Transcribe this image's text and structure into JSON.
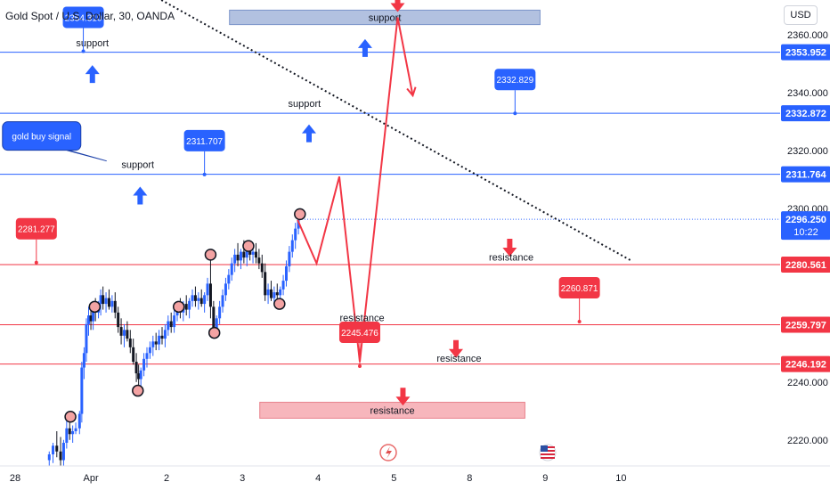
{
  "header": {
    "title": "Gold Spot / U.S. Dollar, 30, OANDA",
    "currency_button": "USD"
  },
  "colors": {
    "support_line": "#2962ff",
    "resistance_line": "#f23645",
    "up_candle": "#2962ff",
    "down_candle": "#131722",
    "support_zone": "#b2c1e0",
    "resistance_zone": "#f7b6bc",
    "blue_arrow": "#2962ff",
    "red_arrow": "#f23645",
    "price_tag_blue": "#2962ff",
    "price_tag_red": "#f23645",
    "projection": "#f23645",
    "marker_fill": "#f4a3a3"
  },
  "chart_data": {
    "type": "candlestick",
    "title": "Gold Spot / U.S. Dollar, 30, OANDA",
    "ylim": [
      2211,
      2372
    ],
    "xlim": [
      -0.2,
      10.1
    ],
    "y_ticks": [
      "2220.000",
      "2240.000",
      "2260.000",
      "2280.000",
      "2300.000",
      "2320.000",
      "2340.000",
      "2360.000"
    ],
    "x_ticks": [
      {
        "label": "28",
        "x": 0.0
      },
      {
        "label": "Apr",
        "x": 1.0
      },
      {
        "label": "2",
        "x": 2.0
      },
      {
        "label": "3",
        "x": 3.0
      },
      {
        "label": "4",
        "x": 4.0
      },
      {
        "label": "5",
        "x": 5.0
      },
      {
        "label": "8",
        "x": 6.0
      },
      {
        "label": "9",
        "x": 7.0
      },
      {
        "label": "10",
        "x": 8.0
      }
    ],
    "horizontal_lines": [
      {
        "value": 2353.952,
        "label": "2353.952",
        "color": "blue"
      },
      {
        "value": 2332.872,
        "label": "2332.872",
        "color": "blue"
      },
      {
        "value": 2311.764,
        "label": "2311.764",
        "color": "blue"
      },
      {
        "value": 2280.561,
        "label": "2280.561",
        "color": "red"
      },
      {
        "value": 2259.797,
        "label": "2259.797",
        "color": "red"
      },
      {
        "value": 2246.192,
        "label": "2246.192",
        "color": "red"
      }
    ],
    "current_price": {
      "value": 2296.25,
      "label": "2296.250",
      "countdown": "10:22"
    },
    "price_callouts": [
      {
        "label": "2354.310",
        "x": 0.9,
        "y": 2354.31,
        "color": "blue"
      },
      {
        "label": "2311.707",
        "x": 2.5,
        "y": 2311.707,
        "color": "blue"
      },
      {
        "label": "2332.829",
        "x": 6.6,
        "y": 2332.829,
        "color": "blue"
      },
      {
        "label": "2281.277",
        "x": 0.28,
        "y": 2281.277,
        "color": "red"
      },
      {
        "label": "2245.476",
        "x": 4.55,
        "y": 2245.476,
        "color": "red"
      },
      {
        "label": "2260.871",
        "x": 7.45,
        "y": 2260.871,
        "color": "red"
      }
    ],
    "annotations": [
      {
        "text": "support",
        "kind": "label",
        "x": 1.02,
        "y": 2356
      },
      {
        "text": "support",
        "kind": "label",
        "x": 1.62,
        "y": 2314
      },
      {
        "text": "support",
        "kind": "label",
        "x": 3.82,
        "y": 2335
      },
      {
        "text": "resistance",
        "kind": "label",
        "x": 6.55,
        "y": 2282
      },
      {
        "text": "resistance",
        "kind": "label",
        "x": 4.58,
        "y": 2261
      },
      {
        "text": "resistance",
        "kind": "label",
        "x": 5.86,
        "y": 2247
      },
      {
        "text": "gold buy signal",
        "kind": "bubble",
        "x": 0.35,
        "y": 2325
      }
    ],
    "zones": [
      {
        "label": "support",
        "kind": "support",
        "x_start": 2.83,
        "x_end": 6.93,
        "y_low": 2363.5,
        "y_high": 2368.5
      },
      {
        "label": "resistance",
        "kind": "resistance",
        "x_start": 3.23,
        "x_end": 6.73,
        "y_low": 2227.5,
        "y_high": 2233
      }
    ],
    "arrows": [
      {
        "dir": "up",
        "color": "blue",
        "x": 1.02,
        "y": 2349.5
      },
      {
        "dir": "up",
        "color": "blue",
        "x": 1.65,
        "y": 2307.5
      },
      {
        "dir": "up",
        "color": "blue",
        "x": 3.88,
        "y": 2329
      },
      {
        "dir": "up",
        "color": "blue",
        "x": 4.62,
        "y": 2358.5
      },
      {
        "dir": "down",
        "color": "red",
        "x": 5.05,
        "y": 2374
      },
      {
        "dir": "down",
        "color": "red",
        "x": 6.53,
        "y": 2289.5
      },
      {
        "dir": "down",
        "color": "red",
        "x": 5.82,
        "y": 2254.5
      },
      {
        "dir": "down",
        "color": "red",
        "x": 5.12,
        "y": 2238
      }
    ],
    "trendline": {
      "points": [
        [
          1.93,
          2372
        ],
        [
          8.13,
          2282
        ]
      ],
      "style": "dotted"
    },
    "projection": [
      [
        3.73,
        2296
      ],
      [
        3.98,
        2281
      ],
      [
        4.28,
        2311
      ],
      [
        4.55,
        2247
      ],
      [
        5.05,
        2366
      ],
      [
        5.25,
        2339
      ]
    ],
    "markers": [
      {
        "x": 0.73,
        "y": 2228
      },
      {
        "x": 1.05,
        "y": 2266
      },
      {
        "x": 1.62,
        "y": 2237
      },
      {
        "x": 2.16,
        "y": 2266
      },
      {
        "x": 2.58,
        "y": 2284
      },
      {
        "x": 2.63,
        "y": 2257
      },
      {
        "x": 3.08,
        "y": 2287
      },
      {
        "x": 3.49,
        "y": 2267
      },
      {
        "x": 3.76,
        "y": 2298
      }
    ],
    "candles": [
      {
        "t": 0.45,
        "o": 2213,
        "h": 2216,
        "l": 2211,
        "c": 2215
      },
      {
        "t": 0.5,
        "o": 2215,
        "h": 2219,
        "l": 2212,
        "c": 2218
      },
      {
        "t": 0.55,
        "o": 2218,
        "h": 2223,
        "l": 2214,
        "c": 2216
      },
      {
        "t": 0.6,
        "o": 2216,
        "h": 2221,
        "l": 2211,
        "c": 2213
      },
      {
        "t": 0.64,
        "o": 2213,
        "h": 2220,
        "l": 2211,
        "c": 2219
      },
      {
        "t": 0.68,
        "o": 2219,
        "h": 2227,
        "l": 2217,
        "c": 2224
      },
      {
        "t": 0.72,
        "o": 2224,
        "h": 2227,
        "l": 2220,
        "c": 2222
      },
      {
        "t": 0.76,
        "o": 2222,
        "h": 2225,
        "l": 2219,
        "c": 2223
      },
      {
        "t": 0.8,
        "o": 2223,
        "h": 2226,
        "l": 2222,
        "c": 2224
      },
      {
        "t": 0.85,
        "o": 2224,
        "h": 2230,
        "l": 2222,
        "c": 2229
      },
      {
        "t": 0.88,
        "o": 2229,
        "h": 2247,
        "l": 2226,
        "c": 2245
      },
      {
        "t": 0.91,
        "o": 2245,
        "h": 2252,
        "l": 2241,
        "c": 2250
      },
      {
        "t": 0.94,
        "o": 2250,
        "h": 2262,
        "l": 2247,
        "c": 2260
      },
      {
        "t": 0.97,
        "o": 2260,
        "h": 2266,
        "l": 2256,
        "c": 2263
      },
      {
        "t": 1.0,
        "o": 2263,
        "h": 2267,
        "l": 2258,
        "c": 2261
      },
      {
        "t": 1.03,
        "o": 2261,
        "h": 2268,
        "l": 2258,
        "c": 2265
      },
      {
        "t": 1.06,
        "o": 2265,
        "h": 2269,
        "l": 2261,
        "c": 2264
      },
      {
        "t": 1.1,
        "o": 2264,
        "h": 2268,
        "l": 2262,
        "c": 2267
      },
      {
        "t": 1.13,
        "o": 2267,
        "h": 2272,
        "l": 2263,
        "c": 2270
      },
      {
        "t": 1.16,
        "o": 2270,
        "h": 2273,
        "l": 2265,
        "c": 2267
      },
      {
        "t": 1.2,
        "o": 2267,
        "h": 2271,
        "l": 2264,
        "c": 2269
      },
      {
        "t": 1.24,
        "o": 2269,
        "h": 2272,
        "l": 2265,
        "c": 2266
      },
      {
        "t": 1.28,
        "o": 2266,
        "h": 2270,
        "l": 2264,
        "c": 2268
      },
      {
        "t": 1.32,
        "o": 2268,
        "h": 2271,
        "l": 2262,
        "c": 2264
      },
      {
        "t": 1.36,
        "o": 2264,
        "h": 2266,
        "l": 2257,
        "c": 2259
      },
      {
        "t": 1.4,
        "o": 2259,
        "h": 2262,
        "l": 2253,
        "c": 2256
      },
      {
        "t": 1.44,
        "o": 2256,
        "h": 2260,
        "l": 2252,
        "c": 2258
      },
      {
        "t": 1.48,
        "o": 2258,
        "h": 2261,
        "l": 2254,
        "c": 2255
      },
      {
        "t": 1.52,
        "o": 2255,
        "h": 2258,
        "l": 2250,
        "c": 2252
      },
      {
        "t": 1.56,
        "o": 2252,
        "h": 2255,
        "l": 2246,
        "c": 2247
      },
      {
        "t": 1.6,
        "o": 2247,
        "h": 2250,
        "l": 2240,
        "c": 2243
      },
      {
        "t": 1.63,
        "o": 2243,
        "h": 2246,
        "l": 2236,
        "c": 2241
      },
      {
        "t": 1.66,
        "o": 2241,
        "h": 2245,
        "l": 2237,
        "c": 2244
      },
      {
        "t": 1.7,
        "o": 2244,
        "h": 2250,
        "l": 2242,
        "c": 2248
      },
      {
        "t": 1.74,
        "o": 2248,
        "h": 2252,
        "l": 2245,
        "c": 2250
      },
      {
        "t": 1.78,
        "o": 2250,
        "h": 2254,
        "l": 2248,
        "c": 2252
      },
      {
        "t": 1.82,
        "o": 2252,
        "h": 2256,
        "l": 2249,
        "c": 2254
      },
      {
        "t": 1.86,
        "o": 2254,
        "h": 2257,
        "l": 2251,
        "c": 2253
      },
      {
        "t": 1.9,
        "o": 2253,
        "h": 2258,
        "l": 2251,
        "c": 2256
      },
      {
        "t": 1.94,
        "o": 2256,
        "h": 2259,
        "l": 2253,
        "c": 2255
      },
      {
        "t": 1.98,
        "o": 2255,
        "h": 2260,
        "l": 2252,
        "c": 2258
      },
      {
        "t": 2.02,
        "o": 2258,
        "h": 2263,
        "l": 2256,
        "c": 2261
      },
      {
        "t": 2.06,
        "o": 2261,
        "h": 2264,
        "l": 2257,
        "c": 2259
      },
      {
        "t": 2.1,
        "o": 2259,
        "h": 2265,
        "l": 2257,
        "c": 2263
      },
      {
        "t": 2.14,
        "o": 2263,
        "h": 2268,
        "l": 2261,
        "c": 2266
      },
      {
        "t": 2.18,
        "o": 2266,
        "h": 2269,
        "l": 2262,
        "c": 2264
      },
      {
        "t": 2.22,
        "o": 2264,
        "h": 2268,
        "l": 2261,
        "c": 2267
      },
      {
        "t": 2.26,
        "o": 2267,
        "h": 2270,
        "l": 2263,
        "c": 2265
      },
      {
        "t": 2.3,
        "o": 2265,
        "h": 2269,
        "l": 2262,
        "c": 2268
      },
      {
        "t": 2.34,
        "o": 2268,
        "h": 2272,
        "l": 2266,
        "c": 2270
      },
      {
        "t": 2.38,
        "o": 2270,
        "h": 2273,
        "l": 2266,
        "c": 2268
      },
      {
        "t": 2.42,
        "o": 2268,
        "h": 2271,
        "l": 2265,
        "c": 2269
      },
      {
        "t": 2.46,
        "o": 2269,
        "h": 2272,
        "l": 2266,
        "c": 2267
      },
      {
        "t": 2.5,
        "o": 2267,
        "h": 2271,
        "l": 2264,
        "c": 2270
      },
      {
        "t": 2.54,
        "o": 2270,
        "h": 2276,
        "l": 2268,
        "c": 2274
      },
      {
        "t": 2.58,
        "o": 2274,
        "h": 2284,
        "l": 2262,
        "c": 2266
      },
      {
        "t": 2.62,
        "o": 2266,
        "h": 2268,
        "l": 2255,
        "c": 2258
      },
      {
        "t": 2.66,
        "o": 2258,
        "h": 2263,
        "l": 2256,
        "c": 2262
      },
      {
        "t": 2.7,
        "o": 2262,
        "h": 2268,
        "l": 2260,
        "c": 2266
      },
      {
        "t": 2.74,
        "o": 2266,
        "h": 2272,
        "l": 2264,
        "c": 2270
      },
      {
        "t": 2.78,
        "o": 2270,
        "h": 2276,
        "l": 2268,
        "c": 2274
      },
      {
        "t": 2.82,
        "o": 2274,
        "h": 2279,
        "l": 2272,
        "c": 2277
      },
      {
        "t": 2.86,
        "o": 2277,
        "h": 2283,
        "l": 2275,
        "c": 2281
      },
      {
        "t": 2.9,
        "o": 2281,
        "h": 2286,
        "l": 2278,
        "c": 2284
      },
      {
        "t": 2.94,
        "o": 2284,
        "h": 2288,
        "l": 2280,
        "c": 2282
      },
      {
        "t": 2.98,
        "o": 2282,
        "h": 2286,
        "l": 2279,
        "c": 2285
      },
      {
        "t": 3.02,
        "o": 2285,
        "h": 2289,
        "l": 2281,
        "c": 2283
      },
      {
        "t": 3.06,
        "o": 2283,
        "h": 2288,
        "l": 2280,
        "c": 2286
      },
      {
        "t": 3.1,
        "o": 2286,
        "h": 2289,
        "l": 2282,
        "c": 2284
      },
      {
        "t": 3.14,
        "o": 2284,
        "h": 2287,
        "l": 2281,
        "c": 2285
      },
      {
        "t": 3.18,
        "o": 2285,
        "h": 2288,
        "l": 2281,
        "c": 2283
      },
      {
        "t": 3.22,
        "o": 2283,
        "h": 2286,
        "l": 2279,
        "c": 2281
      },
      {
        "t": 3.26,
        "o": 2281,
        "h": 2284,
        "l": 2276,
        "c": 2278
      },
      {
        "t": 3.3,
        "o": 2278,
        "h": 2281,
        "l": 2268,
        "c": 2270
      },
      {
        "t": 3.34,
        "o": 2270,
        "h": 2274,
        "l": 2267,
        "c": 2272
      },
      {
        "t": 3.38,
        "o": 2272,
        "h": 2275,
        "l": 2268,
        "c": 2269
      },
      {
        "t": 3.42,
        "o": 2269,
        "h": 2273,
        "l": 2267,
        "c": 2271
      },
      {
        "t": 3.46,
        "o": 2271,
        "h": 2274,
        "l": 2268,
        "c": 2270
      },
      {
        "t": 3.5,
        "o": 2270,
        "h": 2273,
        "l": 2267,
        "c": 2272
      },
      {
        "t": 3.54,
        "o": 2272,
        "h": 2277,
        "l": 2270,
        "c": 2275
      },
      {
        "t": 3.58,
        "o": 2275,
        "h": 2282,
        "l": 2273,
        "c": 2280
      },
      {
        "t": 3.62,
        "o": 2280,
        "h": 2287,
        "l": 2278,
        "c": 2285
      },
      {
        "t": 3.66,
        "o": 2285,
        "h": 2291,
        "l": 2283,
        "c": 2289
      },
      {
        "t": 3.7,
        "o": 2289,
        "h": 2295,
        "l": 2286,
        "c": 2293
      },
      {
        "t": 3.74,
        "o": 2293,
        "h": 2298,
        "l": 2291,
        "c": 2296
      }
    ]
  }
}
